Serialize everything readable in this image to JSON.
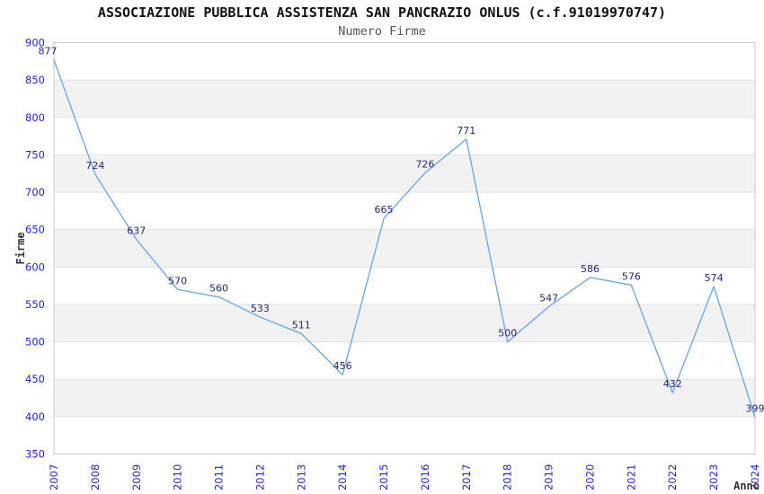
{
  "header": {
    "title": "ASSOCIAZIONE PUBBLICA ASSISTENZA SAN PANCRAZIO ONLUS (c.f.91019970747)",
    "subtitle": "Numero Firme"
  },
  "chart_data": {
    "type": "line",
    "title": "ASSOCIAZIONE PUBBLICA ASSISTENZA SAN PANCRAZIO ONLUS (c.f.91019970747)",
    "subtitle": "Numero Firme",
    "xlabel": "Anno",
    "ylabel": "Firme",
    "x": [
      2007,
      2008,
      2009,
      2010,
      2011,
      2012,
      2013,
      2014,
      2015,
      2016,
      2017,
      2018,
      2019,
      2020,
      2021,
      2022,
      2023,
      2024
    ],
    "series": [
      {
        "name": "Numero Firme",
        "values": [
          877,
          724,
          637,
          570,
          560,
          533,
          511,
          456,
          665,
          726,
          771,
          500,
          547,
          586,
          576,
          432,
          574,
          399
        ]
      }
    ],
    "ylim": [
      350,
      900
    ],
    "ytick_step": 50,
    "yticks": [
      350,
      400,
      450,
      500,
      550,
      600,
      650,
      700,
      750,
      800,
      850,
      900
    ],
    "grid": "horizontal-alternating-bands",
    "legend_position": "none",
    "data_labels_visible": true,
    "colors": {
      "line": "#70A9E8",
      "data_label": "#26267B",
      "tick_label": "#2323CF",
      "axis_title": "#333333",
      "band_fill": "#f2f2f2",
      "grid_line": "#e3e3e3",
      "plot_border": "#c9c9c9",
      "plot_background": "#ffffff"
    }
  }
}
